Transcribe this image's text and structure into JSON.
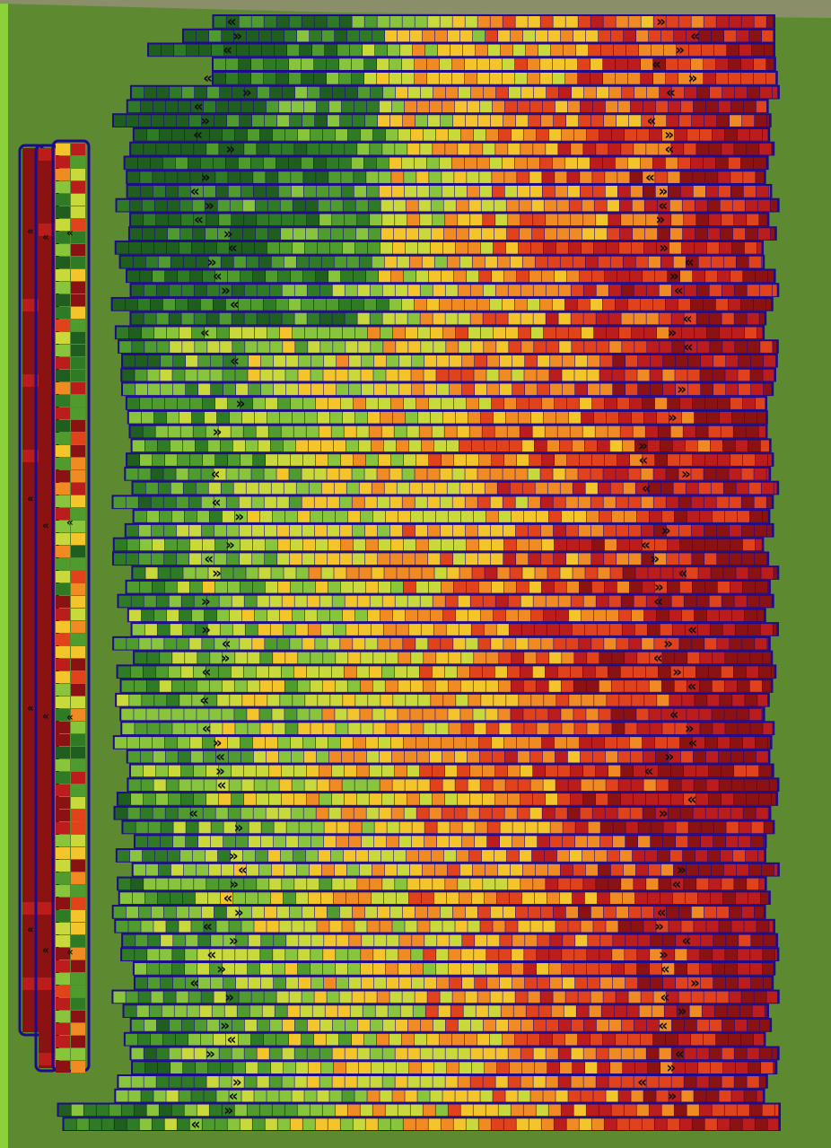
{
  "map": {
    "kind": "yield-pass-map",
    "orientation": "vertical-field",
    "background_colors": {
      "field": "#5d8a30",
      "field_edge": "#8bd13a",
      "ground_top": "#8a8f6a"
    },
    "outline_color": "#1e0a8c",
    "direction_marker_glyphs": {
      "left_pass": "«",
      "right_pass": "»"
    },
    "legend_palette": [
      {
        "class": 0,
        "color": "#1f5e1f"
      },
      {
        "class": 1,
        "color": "#2f7a24"
      },
      {
        "class": 2,
        "color": "#4f9b2e"
      },
      {
        "class": 3,
        "color": "#88c43c"
      },
      {
        "class": 4,
        "color": "#c9d83a"
      },
      {
        "class": 5,
        "color": "#f3c52a"
      },
      {
        "class": 6,
        "color": "#f08a22"
      },
      {
        "class": 7,
        "color": "#e0421c"
      },
      {
        "class": 8,
        "color": "#bb1c1c"
      },
      {
        "class": 9,
        "color": "#8a1212"
      }
    ],
    "main_block": {
      "pass_count": 79,
      "gradient": "green (low) on the left, transitioning to orange/red (high) on the right",
      "has_direction_markers": true
    },
    "side_strips": {
      "count": 3,
      "orientation": "vertical",
      "dominant_colors": [
        "#8a1212",
        "#8a1212",
        "mixed"
      ]
    }
  }
}
